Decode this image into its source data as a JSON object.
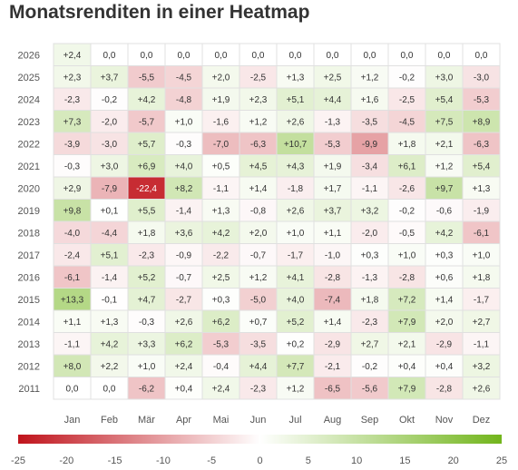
{
  "chart_data": {
    "type": "heatmap",
    "title": "Monatsrenditen in einer Heatmap",
    "xlabel": "",
    "ylabel": "",
    "x_categories": [
      "Jan",
      "Feb",
      "Mär",
      "Apr",
      "Mai",
      "Jun",
      "Jul",
      "Aug",
      "Sep",
      "Okt",
      "Nov",
      "Dez"
    ],
    "y_categories": [
      "2026",
      "2025",
      "2024",
      "2023",
      "2022",
      "2021",
      "2020",
      "2019",
      "2018",
      "2017",
      "2016",
      "2015",
      "2014",
      "2013",
      "2012",
      "2011"
    ],
    "values": [
      [
        "+2,4",
        "0,0",
        "0,0",
        "0,0",
        "0,0",
        "0,0",
        "0,0",
        "0,0",
        "0,0",
        "0,0",
        "0,0",
        "0,0"
      ],
      [
        "+2,3",
        "+3,7",
        "-5,5",
        "-4,5",
        "+2,0",
        "-2,5",
        "+1,3",
        "+2,5",
        "+1,2",
        "-0,2",
        "+3,0",
        "-3,0"
      ],
      [
        "-2,3",
        "-0,2",
        "+4,2",
        "-4,8",
        "+1,9",
        "+2,3",
        "+5,1",
        "+4,4",
        "+1,6",
        "-2,5",
        "+5,4",
        "-5,3"
      ],
      [
        "+7,3",
        "-2,0",
        "-5,7",
        "+1,0",
        "-1,6",
        "+1,2",
        "+2,6",
        "-1,3",
        "-3,5",
        "-4,5",
        "+7,5",
        "+8,9"
      ],
      [
        "-3,9",
        "-3,0",
        "+5,7",
        "-0,3",
        "-7,0",
        "-6,3",
        "+10,7",
        "-5,3",
        "-9,9",
        "+1,8",
        "+2,1",
        "-6,3"
      ],
      [
        "-0,3",
        "+3,0",
        "+6,9",
        "+4,0",
        "+0,5",
        "+4,5",
        "+4,3",
        "+1,9",
        "-3,4",
        "+6,1",
        "+1,2",
        "+5,4"
      ],
      [
        "+2,9",
        "-7,9",
        "-22,4",
        "+8,2",
        "-1,1",
        "+1,4",
        "-1,8",
        "+1,7",
        "-1,1",
        "-2,6",
        "+9,7",
        "+1,3"
      ],
      [
        "+9,8",
        "+0,1",
        "+5,5",
        "-1,4",
        "+1,3",
        "-0,8",
        "+2,6",
        "+3,7",
        "+3,2",
        "-0,2",
        "-0,6",
        "-1,9"
      ],
      [
        "-4,0",
        "-4,4",
        "+1,8",
        "+3,6",
        "+4,2",
        "+2,0",
        "+1,0",
        "+1,1",
        "-2,0",
        "-0,5",
        "+4,2",
        "-6,1"
      ],
      [
        "-2,4",
        "+5,1",
        "-2,3",
        "-0,9",
        "-2,2",
        "-0,7",
        "-1,7",
        "-1,0",
        "+0,3",
        "+1,0",
        "+0,3",
        "+1,0"
      ],
      [
        "-6,1",
        "-1,4",
        "+5,2",
        "-0,7",
        "+2,5",
        "+1,2",
        "+4,1",
        "-2,8",
        "-1,3",
        "-2,8",
        "+0,6",
        "+1,8"
      ],
      [
        "+13,3",
        "-0,1",
        "+4,7",
        "-2,7",
        "+0,3",
        "-5,0",
        "+4,0",
        "-7,4",
        "+1,8",
        "+7,2",
        "+1,4",
        "-1,7"
      ],
      [
        "+1,1",
        "+1,3",
        "-0,3",
        "+2,6",
        "+6,2",
        "+0,7",
        "+5,2",
        "+1,4",
        "-2,3",
        "+7,9",
        "+2,0",
        "+2,7"
      ],
      [
        "-1,1",
        "+4,2",
        "+3,3",
        "+6,2",
        "-5,3",
        "-3,5",
        "+0,2",
        "-2,9",
        "+2,7",
        "+2,1",
        "-2,9",
        "-1,1"
      ],
      [
        "+8,0",
        "+2,2",
        "+1,0",
        "+2,4",
        "-0,4",
        "+4,4",
        "+7,7",
        "-2,1",
        "-0,2",
        "+0,4",
        "+0,4",
        "+3,2"
      ],
      [
        "0,0",
        "0,0",
        "-6,2",
        "+0,4",
        "+2,4",
        "-2,3",
        "+1,2",
        "-6,5",
        "-5,6",
        "+7,9",
        "-2,8",
        "+2,6"
      ]
    ],
    "colorscale": {
      "min": -25,
      "max": 25,
      "ticks": [
        "-25",
        "-20",
        "-15",
        "-10",
        "-5",
        "0",
        "5",
        "10",
        "15",
        "20",
        "25"
      ],
      "negative_color": "#c0131b",
      "zero_color": "#ffffff",
      "positive_color": "#72b51c",
      "placement": "bottom"
    },
    "grid": true
  }
}
